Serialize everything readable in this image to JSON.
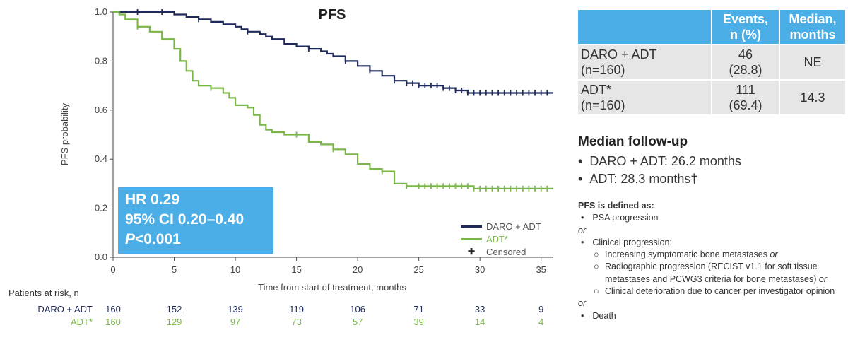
{
  "chart_data": {
    "type": "line",
    "title": "PFS",
    "xlabel": "Time from start of treatment, months",
    "ylabel": "PFS probability",
    "xlim": [
      0,
      36
    ],
    "ylim": [
      0,
      1.0
    ],
    "x_ticks": [
      0,
      5,
      10,
      15,
      20,
      25,
      30,
      35
    ],
    "y_ticks": [
      "0.0",
      "0.2",
      "0.4",
      "0.6",
      "0.8",
      "1.0"
    ],
    "series": [
      {
        "name": "DARO + ADT",
        "color": "#1e2a5a",
        "points": [
          [
            0,
            1.0
          ],
          [
            4,
            1.0
          ],
          [
            5,
            0.99
          ],
          [
            6,
            0.98
          ],
          [
            7,
            0.97
          ],
          [
            8,
            0.96
          ],
          [
            9,
            0.95
          ],
          [
            10,
            0.94
          ],
          [
            10.5,
            0.93
          ],
          [
            11,
            0.92
          ],
          [
            12,
            0.91
          ],
          [
            12.5,
            0.9
          ],
          [
            13,
            0.89
          ],
          [
            14,
            0.87
          ],
          [
            15,
            0.86
          ],
          [
            16,
            0.85
          ],
          [
            17,
            0.84
          ],
          [
            17.5,
            0.83
          ],
          [
            18,
            0.82
          ],
          [
            19,
            0.8
          ],
          [
            20,
            0.78
          ],
          [
            21,
            0.76
          ],
          [
            22,
            0.74
          ],
          [
            23,
            0.72
          ],
          [
            24,
            0.71
          ],
          [
            25,
            0.7
          ],
          [
            26,
            0.7
          ],
          [
            27,
            0.69
          ],
          [
            28,
            0.68
          ],
          [
            29,
            0.67
          ],
          [
            36,
            0.67
          ]
        ],
        "censored_x": [
          2,
          4,
          7,
          11,
          16,
          19,
          21,
          23,
          24,
          24.5,
          25,
          25.5,
          26,
          26.5,
          27,
          27.5,
          28,
          28.5,
          29,
          29.5,
          30,
          30.5,
          31,
          31.5,
          32,
          32.5,
          33,
          33.5,
          34,
          34.5,
          35,
          35.5
        ]
      },
      {
        "name": "ADT*",
        "color": "#7ab648",
        "points": [
          [
            0,
            1.0
          ],
          [
            0.5,
            0.99
          ],
          [
            1,
            0.97
          ],
          [
            2,
            0.94
          ],
          [
            3,
            0.92
          ],
          [
            4,
            0.89
          ],
          [
            5,
            0.85
          ],
          [
            5.5,
            0.8
          ],
          [
            6,
            0.76
          ],
          [
            6.5,
            0.72
          ],
          [
            7,
            0.7
          ],
          [
            8,
            0.69
          ],
          [
            9,
            0.67
          ],
          [
            9.5,
            0.65
          ],
          [
            10,
            0.62
          ],
          [
            11,
            0.61
          ],
          [
            11.5,
            0.58
          ],
          [
            12,
            0.54
          ],
          [
            12.5,
            0.52
          ],
          [
            13,
            0.51
          ],
          [
            14,
            0.5
          ],
          [
            15,
            0.5
          ],
          [
            16,
            0.47
          ],
          [
            17,
            0.46
          ],
          [
            18,
            0.44
          ],
          [
            19,
            0.42
          ],
          [
            20,
            0.38
          ],
          [
            21,
            0.36
          ],
          [
            22,
            0.35
          ],
          [
            23,
            0.3
          ],
          [
            24,
            0.29
          ],
          [
            29,
            0.29
          ],
          [
            29.5,
            0.28
          ],
          [
            36,
            0.28
          ]
        ],
        "censored_x": [
          2,
          8,
          15,
          18,
          22,
          24,
          25,
          25.5,
          26,
          26.5,
          27,
          27.5,
          28,
          28.5,
          29,
          29.5,
          30,
          30.5,
          31,
          31.5,
          32,
          32.5,
          33,
          33.5,
          34,
          34.5,
          35,
          35.5
        ]
      }
    ],
    "legend": {
      "position": "bottom-right",
      "entries": [
        "DARO + ADT",
        "ADT*"
      ],
      "censored_label": "Censored"
    },
    "annotation": {
      "line1": "HR 0.29",
      "line2": "95% CI 0.20–0.40",
      "line3_italic": "P",
      "line3_rest": "<0.001",
      "color": "#4baee7"
    },
    "risk_table": {
      "title": "Patients at risk, n",
      "rows": [
        {
          "label": "DARO + ADT",
          "color": "#1e2a5a",
          "values": [
            "160",
            "152",
            "139",
            "119",
            "106",
            "71",
            "33",
            "9"
          ]
        },
        {
          "label": "ADT*",
          "color": "#7ab648",
          "values": [
            "160",
            "129",
            "97",
            "73",
            "57",
            "39",
            "14",
            "4"
          ]
        }
      ]
    }
  },
  "stats_table": {
    "headers": [
      "",
      "Events, n (%)",
      "Median, months"
    ],
    "header_lines": [
      [
        "Events,",
        "n (%)"
      ],
      [
        "Median,",
        "months"
      ]
    ],
    "rows": [
      {
        "arm": "DARO + ADT",
        "n": "(n=160)",
        "events": "46",
        "events_pct": "(28.8)",
        "median": "NE"
      },
      {
        "arm": "ADT*",
        "n": "(n=160)",
        "events": "111",
        "events_pct": "(69.4)",
        "median": "14.3"
      }
    ]
  },
  "followup": {
    "title": "Median follow-up",
    "items": [
      "DARO + ADT: 26.2 months",
      "ADT: 28.3 months†"
    ]
  },
  "definition": {
    "title": "PFS is defined as:",
    "item1": "PSA progression",
    "or1": "or",
    "item2": "Clinical progression:",
    "sub1": "Increasing symptomatic bone metastases",
    "sub1_or": "or",
    "sub2": "Radiographic progression (RECIST v1.1 for soft tissue metastases and PCWG3 criteria for bone metastases)",
    "sub2_or": "or",
    "sub3": "Clinical deterioration due to cancer per investigator opinion",
    "or2": "or",
    "item3": "Death"
  }
}
